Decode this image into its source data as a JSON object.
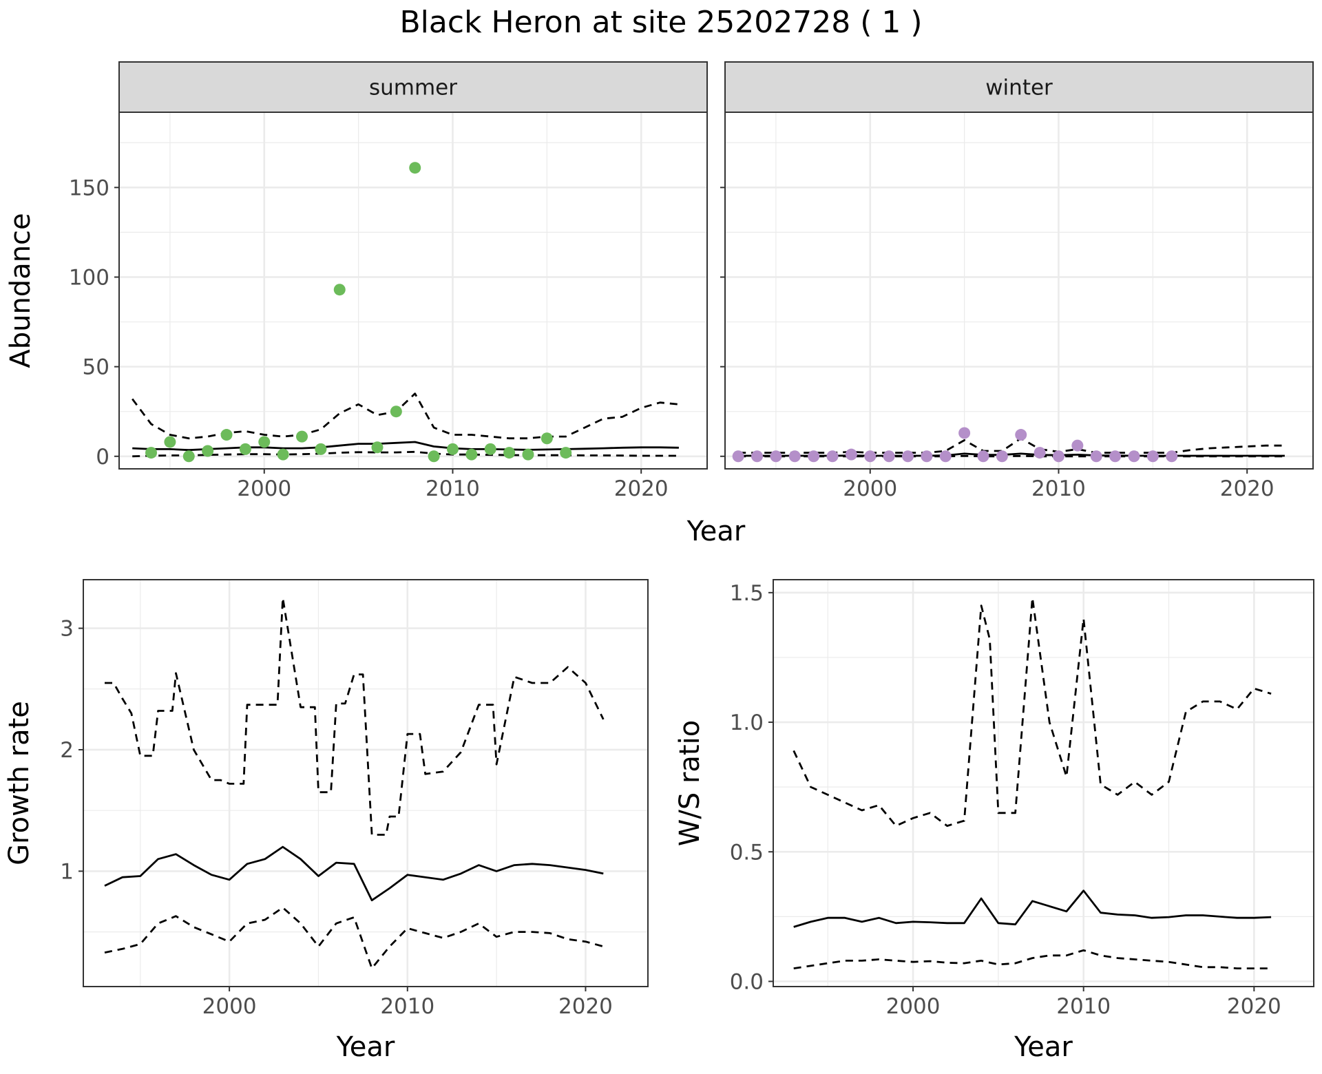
{
  "title": "Black Heron at site 25202728 ( 1 )",
  "colors": {
    "summer": "#6cbb5a",
    "winter": "#b48fc9",
    "line": "#000000",
    "strip": "#d9d9d9",
    "grid": "#ebebeb"
  },
  "chart_data": [
    {
      "type": "scatter",
      "panel": "summer",
      "strip_label": "summer",
      "xlabel": "Year",
      "ylabel": "Abundance",
      "xlim": [
        1992.3,
        2023.5
      ],
      "ylim": [
        -7,
        192
      ],
      "x_ticks": [
        2000,
        2010,
        2020
      ],
      "y_ticks": [
        0,
        50,
        100,
        150
      ],
      "point_color": "#6cbb5a",
      "points": {
        "x": [
          1994,
          1995,
          1996,
          1997,
          1998,
          1999,
          2000,
          2001,
          2002,
          2003,
          2004,
          2006,
          2007,
          2008,
          2009,
          2010,
          2011,
          2012,
          2013,
          2014,
          2015,
          2016
        ],
        "y": [
          2,
          8,
          0,
          3,
          12,
          4,
          8,
          1,
          11,
          4,
          93,
          5,
          25,
          161,
          0,
          4,
          1,
          4,
          2,
          1,
          10,
          2
        ]
      },
      "lines": [
        {
          "style": "solid",
          "x": [
            1993,
            1994,
            1995,
            1996,
            1997,
            1998,
            1999,
            2000,
            2001,
            2002,
            2003,
            2004,
            2005,
            2006,
            2007,
            2008,
            2009,
            2010,
            2011,
            2012,
            2013,
            2014,
            2015,
            2016,
            2017,
            2018,
            2019,
            2020,
            2021,
            2022
          ],
          "y": [
            4.5,
            4,
            4,
            3.5,
            4,
            4.5,
            5,
            5,
            4.5,
            4.5,
            5,
            6,
            7,
            7,
            7.5,
            8,
            5.5,
            4.5,
            4,
            4,
            3.8,
            3.6,
            3.8,
            4,
            4.2,
            4.5,
            4.8,
            5,
            5,
            4.8
          ]
        },
        {
          "style": "dashed",
          "x": [
            1993,
            1994,
            1995,
            1996,
            1997,
            1998,
            1999,
            2000,
            2001,
            2002,
            2003,
            2004,
            2005,
            2006,
            2007,
            2008,
            2009,
            2010,
            2011,
            2012,
            2013,
            2014,
            2015,
            2016,
            2017,
            2018,
            2019,
            2020,
            2021,
            2022
          ],
          "y": [
            32,
            18,
            12,
            10,
            11,
            13,
            14,
            12,
            11,
            12,
            15,
            24,
            29,
            23,
            25,
            35,
            16,
            12,
            12,
            11,
            10,
            10,
            11,
            11,
            16,
            21,
            22,
            27,
            30,
            29
          ]
        },
        {
          "style": "dashed",
          "x": [
            1993,
            1994,
            1995,
            1996,
            1997,
            1998,
            1999,
            2000,
            2001,
            2002,
            2003,
            2004,
            2005,
            2006,
            2007,
            2008,
            2009,
            2010,
            2011,
            2012,
            2013,
            2014,
            2015,
            2016,
            2017,
            2018,
            2019,
            2020,
            2021,
            2022
          ],
          "y": [
            0,
            0.3,
            0.5,
            0.5,
            0.8,
            1,
            1.2,
            1.2,
            1,
            1.2,
            1.5,
            2,
            2.3,
            2.2,
            2.2,
            2.5,
            1.5,
            1,
            1,
            0.8,
            0.7,
            0.6,
            0.6,
            0.6,
            0.5,
            0.5,
            0.4,
            0.3,
            0.3,
            0.3
          ]
        }
      ]
    },
    {
      "type": "scatter",
      "panel": "winter",
      "strip_label": "winter",
      "xlabel": "Year",
      "ylabel": "Abundance",
      "xlim": [
        1992.3,
        2023.5
      ],
      "ylim": [
        -7,
        192
      ],
      "x_ticks": [
        2000,
        2010,
        2020
      ],
      "y_ticks": [
        0,
        50,
        100,
        150
      ],
      "point_color": "#b48fc9",
      "points": {
        "x": [
          1993,
          1994,
          1995,
          1996,
          1997,
          1998,
          1999,
          2000,
          2001,
          2002,
          2003,
          2004,
          2005,
          2006,
          2007,
          2008,
          2009,
          2010,
          2011,
          2012,
          2013,
          2014,
          2015,
          2016
        ],
        "y": [
          0,
          0,
          0,
          0,
          0,
          0,
          1,
          0,
          0,
          0,
          0,
          0,
          13,
          0,
          0,
          12,
          2,
          0,
          6,
          0,
          0,
          0,
          0,
          0
        ]
      },
      "lines": [
        {
          "style": "solid",
          "x": [
            1993,
            1994,
            1995,
            1996,
            1997,
            1998,
            1999,
            2000,
            2001,
            2002,
            2003,
            2004,
            2005,
            2006,
            2007,
            2008,
            2009,
            2010,
            2011,
            2012,
            2013,
            2014,
            2015,
            2016,
            2017,
            2018,
            2019,
            2020,
            2021,
            2022
          ],
          "y": [
            0.3,
            0.3,
            0.3,
            0.3,
            0.3,
            0.3,
            0.4,
            0.3,
            0.3,
            0.3,
            0.3,
            0.5,
            1.5,
            0.8,
            0.8,
            1.5,
            0.8,
            0.6,
            0.9,
            0.5,
            0.4,
            0.3,
            0.3,
            0.3,
            0.3,
            0.3,
            0.3,
            0.3,
            0.3,
            0.3
          ]
        },
        {
          "style": "dashed",
          "x": [
            1993,
            1994,
            1995,
            1996,
            1997,
            1998,
            1999,
            2000,
            2001,
            2002,
            2003,
            2004,
            2005,
            2006,
            2007,
            2008,
            2009,
            2010,
            2011,
            2012,
            2013,
            2014,
            2015,
            2016,
            2017,
            2018,
            2019,
            2020,
            2021,
            2022
          ],
          "y": [
            2,
            2,
            2,
            2,
            2,
            2,
            2.5,
            2,
            2,
            2,
            2,
            3,
            9,
            3,
            3,
            10,
            4,
            2.5,
            4,
            2,
            2,
            2,
            2,
            2,
            3.5,
            4.5,
            5,
            5.5,
            6,
            6
          ]
        },
        {
          "style": "dashed",
          "x": [
            1993,
            1994,
            1995,
            1996,
            1997,
            1998,
            1999,
            2000,
            2001,
            2002,
            2003,
            2004,
            2005,
            2006,
            2007,
            2008,
            2009,
            2010,
            2011,
            2012,
            2013,
            2014,
            2015,
            2016,
            2017,
            2018,
            2019,
            2020,
            2021,
            2022
          ],
          "y": [
            0,
            0,
            0,
            0,
            0,
            0,
            0,
            0,
            0,
            0,
            0,
            0,
            0.2,
            0,
            0,
            0.2,
            0,
            0,
            0,
            0,
            0,
            0,
            0,
            0,
            0,
            0,
            0,
            0,
            0,
            0
          ]
        }
      ]
    },
    {
      "type": "line",
      "panel": "growth",
      "xlabel": "Year",
      "ylabel": "Growth rate",
      "xlim": [
        1991.8,
        2023.5
      ],
      "ylim": [
        0.05,
        3.4
      ],
      "x_ticks": [
        2000,
        2010,
        2020
      ],
      "y_ticks": [
        1,
        2,
        3
      ],
      "series": [
        {
          "style": "solid",
          "x": [
            1993,
            1994,
            1995,
            1996,
            1997,
            1998,
            1999,
            2000,
            2001,
            2002,
            2003,
            2004,
            2005,
            2006,
            2007,
            2008,
            2009,
            2010,
            2011,
            2012,
            2013,
            2014,
            2015,
            2016,
            2017,
            2018,
            2019,
            2020,
            2021
          ],
          "y": [
            0.88,
            0.95,
            0.96,
            1.1,
            1.14,
            1.05,
            0.97,
            0.93,
            1.06,
            1.1,
            1.2,
            1.1,
            0.96,
            1.07,
            1.06,
            0.76,
            0.86,
            0.97,
            0.95,
            0.93,
            0.98,
            1.05,
            1.0,
            1.05,
            1.06,
            1.05,
            1.03,
            1.01,
            0.98
          ]
        },
        {
          "style": "dashed",
          "x": [
            1993,
            1993.5,
            1994,
            1994.5,
            1995,
            1995.7,
            1996,
            1996.8,
            1997,
            1998,
            1999,
            1999.5,
            2000,
            2000.8,
            2001,
            2002,
            2002.7,
            2003,
            2004,
            2004.8,
            2005,
            2005.7,
            2006,
            2006.5,
            2007,
            2007.5,
            2008,
            2008.8,
            2009,
            2009.5,
            2010,
            2010.7,
            2011,
            2012,
            2013,
            2014,
            2014.8,
            2015,
            2016,
            2017,
            2018,
            2019,
            2020,
            2021
          ],
          "y": [
            2.55,
            2.55,
            2.42,
            2.3,
            1.95,
            1.95,
            2.32,
            2.32,
            2.63,
            2.0,
            1.75,
            1.75,
            1.72,
            1.72,
            2.37,
            2.37,
            2.37,
            3.25,
            2.35,
            2.35,
            1.65,
            1.65,
            2.38,
            2.38,
            2.62,
            2.62,
            1.3,
            1.3,
            1.45,
            1.45,
            2.13,
            2.13,
            1.8,
            1.82,
            1.98,
            2.37,
            2.37,
            1.88,
            2.6,
            2.55,
            2.55,
            2.68,
            2.55,
            2.25
          ]
        },
        {
          "style": "dashed",
          "x": [
            1993,
            1994,
            1995,
            1996,
            1997,
            1998,
            1999,
            2000,
            2001,
            2002,
            2003,
            2004,
            2005,
            2006,
            2007,
            2008,
            2009,
            2010,
            2011,
            2012,
            2013,
            2014,
            2015,
            2016,
            2017,
            2018,
            2019,
            2020,
            2021
          ],
          "y": [
            0.33,
            0.36,
            0.4,
            0.57,
            0.63,
            0.54,
            0.48,
            0.42,
            0.57,
            0.6,
            0.7,
            0.57,
            0.38,
            0.57,
            0.62,
            0.2,
            0.38,
            0.53,
            0.49,
            0.45,
            0.5,
            0.57,
            0.46,
            0.5,
            0.5,
            0.49,
            0.44,
            0.42,
            0.38
          ]
        }
      ]
    },
    {
      "type": "line",
      "panel": "ws_ratio",
      "xlabel": "Year",
      "ylabel": "W/S ratio",
      "xlim": [
        1991.8,
        2023.5
      ],
      "ylim": [
        -0.02,
        1.55
      ],
      "x_ticks": [
        2000,
        2010,
        2020
      ],
      "y_ticks": [
        0.0,
        0.5,
        1.0,
        1.5
      ],
      "y_tick_labels": [
        "0.0",
        "0.5",
        "1.0",
        "1.5"
      ],
      "series": [
        {
          "style": "solid",
          "x": [
            1993,
            1994,
            1995,
            1996,
            1997,
            1998,
            1999,
            2000,
            2001,
            2002,
            2003,
            2004,
            2005,
            2006,
            2007,
            2008,
            2009,
            2010,
            2011,
            2012,
            2013,
            2014,
            2015,
            2016,
            2017,
            2018,
            2019,
            2020,
            2021
          ],
          "y": [
            0.21,
            0.23,
            0.245,
            0.245,
            0.23,
            0.245,
            0.225,
            0.23,
            0.228,
            0.225,
            0.225,
            0.32,
            0.225,
            0.22,
            0.31,
            0.29,
            0.27,
            0.35,
            0.265,
            0.258,
            0.255,
            0.245,
            0.248,
            0.255,
            0.255,
            0.25,
            0.245,
            0.245,
            0.248
          ]
        },
        {
          "style": "dashed",
          "x": [
            1993,
            1994,
            1995,
            1996,
            1997,
            1998,
            1999,
            2000,
            2001,
            2002,
            2003,
            2004,
            2004.5,
            2005,
            2006,
            2007,
            2008,
            2009,
            2010,
            2011,
            2012,
            2013,
            2014,
            2015,
            2016,
            2017,
            2018,
            2019,
            2020,
            2021
          ],
          "y": [
            0.89,
            0.75,
            0.72,
            0.69,
            0.66,
            0.68,
            0.6,
            0.63,
            0.65,
            0.6,
            0.62,
            1.45,
            1.32,
            0.65,
            0.65,
            1.48,
            1.0,
            0.79,
            1.4,
            0.76,
            0.72,
            0.77,
            0.72,
            0.77,
            1.04,
            1.08,
            1.08,
            1.05,
            1.13,
            1.11
          ]
        },
        {
          "style": "dashed",
          "x": [
            1993,
            1994,
            1995,
            1996,
            1997,
            1998,
            1999,
            2000,
            2001,
            2002,
            2003,
            2004,
            2005,
            2006,
            2007,
            2008,
            2009,
            2010,
            2011,
            2012,
            2013,
            2014,
            2015,
            2016,
            2017,
            2018,
            2019,
            2020,
            2021
          ],
          "y": [
            0.05,
            0.06,
            0.07,
            0.08,
            0.08,
            0.085,
            0.08,
            0.075,
            0.078,
            0.072,
            0.07,
            0.08,
            0.065,
            0.07,
            0.09,
            0.1,
            0.1,
            0.12,
            0.1,
            0.09,
            0.085,
            0.08,
            0.075,
            0.065,
            0.055,
            0.055,
            0.05,
            0.05,
            0.05
          ]
        }
      ]
    }
  ]
}
